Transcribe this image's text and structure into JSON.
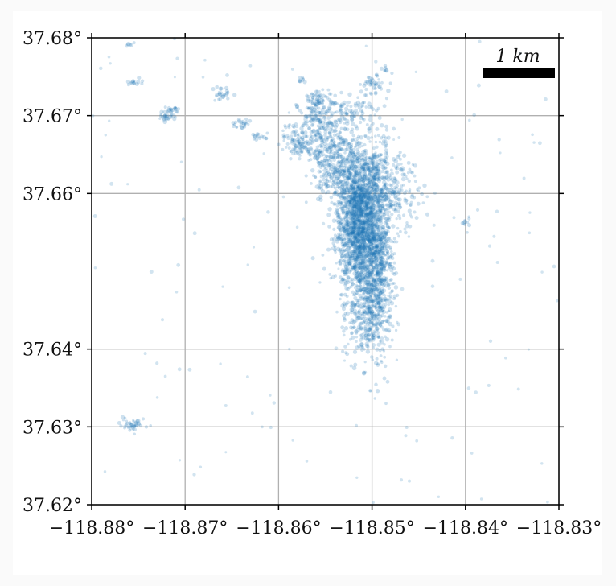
{
  "map": {
    "axes": {
      "xlim": [
        -118.88,
        -118.83
      ],
      "ylim": [
        37.62,
        37.68
      ],
      "grid": true,
      "x_ticks": [
        -118.88,
        -118.87,
        -118.86,
        -118.85,
        -118.84,
        -118.83
      ],
      "y_ticks": [
        37.62,
        37.63,
        37.64,
        37.66,
        37.67,
        37.68
      ],
      "x_tick_labels": [
        "−118.88°",
        "−118.87°",
        "−118.86°",
        "−118.85°",
        "−118.84°",
        "−118.83°"
      ],
      "y_tick_labels": [
        "37.62°",
        "37.63°",
        "37.64°",
        "37.66°",
        "37.67°",
        "37.68°"
      ]
    },
    "scale_bar": {
      "label": "1 km"
    },
    "colors": {
      "points": "#1f77b4",
      "grid": "#b0b0b0",
      "axis": "#000000",
      "scale_bar": "#000000"
    },
    "point_clusters": [
      {
        "lon": -118.8515,
        "lat": 37.6555,
        "sx": 0.0012,
        "sy": 0.0045,
        "n": 1500
      },
      {
        "lon": -118.8495,
        "lat": 37.65,
        "sx": 0.0009,
        "sy": 0.0055,
        "n": 800
      },
      {
        "lon": -118.8505,
        "lat": 37.6605,
        "sx": 0.0015,
        "sy": 0.0035,
        "n": 600
      },
      {
        "lon": -118.854,
        "lat": 37.664,
        "sx": 0.0013,
        "sy": 0.0025,
        "n": 350
      },
      {
        "lon": -118.856,
        "lat": 37.669,
        "sx": 0.0012,
        "sy": 0.0018,
        "n": 200
      },
      {
        "lon": -118.858,
        "lat": 37.6665,
        "sx": 0.0008,
        "sy": 0.0008,
        "n": 80
      },
      {
        "lon": -118.852,
        "lat": 37.671,
        "sx": 0.0015,
        "sy": 0.0012,
        "n": 80
      },
      {
        "lon": -118.85,
        "lat": 37.674,
        "sx": 0.0008,
        "sy": 0.0008,
        "n": 40
      },
      {
        "lon": -118.856,
        "lat": 37.672,
        "sx": 0.0006,
        "sy": 0.0006,
        "n": 40
      },
      {
        "lon": -118.847,
        "lat": 37.66,
        "sx": 0.001,
        "sy": 0.002,
        "n": 120
      },
      {
        "lon": -118.851,
        "lat": 37.644,
        "sx": 0.001,
        "sy": 0.0025,
        "n": 150
      },
      {
        "lon": -118.872,
        "lat": 37.6698,
        "sx": 0.0004,
        "sy": 0.0003,
        "n": 25
      },
      {
        "lon": -118.8755,
        "lat": 37.6742,
        "sx": 0.0004,
        "sy": 0.0002,
        "n": 15
      },
      {
        "lon": -118.8715,
        "lat": 37.6708,
        "sx": 0.0004,
        "sy": 0.0002,
        "n": 18
      },
      {
        "lon": -118.8755,
        "lat": 37.6303,
        "sx": 0.0008,
        "sy": 0.0004,
        "n": 40
      },
      {
        "lon": -118.866,
        "lat": 37.6728,
        "sx": 0.0005,
        "sy": 0.0005,
        "n": 25
      },
      {
        "lon": -118.864,
        "lat": 37.669,
        "sx": 0.0005,
        "sy": 0.0003,
        "n": 25
      },
      {
        "lon": -118.862,
        "lat": 37.6673,
        "sx": 0.0005,
        "sy": 0.0002,
        "n": 15
      },
      {
        "lon": -118.84,
        "lat": 37.6562,
        "sx": 0.0003,
        "sy": 0.0004,
        "n": 10
      },
      {
        "lon": -118.8485,
        "lat": 37.6759,
        "sx": 0.0002,
        "sy": 0.0002,
        "n": 8
      },
      {
        "lon": -118.8575,
        "lat": 37.6745,
        "sx": 0.0003,
        "sy": 0.0003,
        "n": 8
      },
      {
        "lon": -118.8762,
        "lat": 37.6792,
        "sx": 0.0003,
        "sy": 0.0002,
        "n": 6
      }
    ],
    "background_scatter_n": 140
  }
}
